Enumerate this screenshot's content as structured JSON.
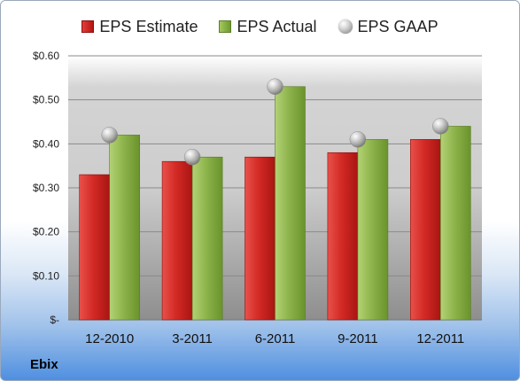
{
  "chart_data": {
    "type": "bar",
    "categories": [
      "12-2010",
      "3-2011",
      "6-2011",
      "9-2011",
      "12-2011"
    ],
    "series": [
      {
        "name": "EPS Estimate",
        "values": [
          0.33,
          0.36,
          0.37,
          0.38,
          0.41
        ],
        "color": "#c42420"
      },
      {
        "name": "EPS Actual",
        "values": [
          0.42,
          0.37,
          0.53,
          0.41,
          0.44
        ],
        "color": "#8cb14a"
      },
      {
        "name": "EPS GAAP",
        "values": [
          0.42,
          0.37,
          0.53,
          0.41,
          0.44
        ],
        "color": "#b0b0b0",
        "marker": "circle"
      }
    ],
    "y_ticks": [
      0,
      0.1,
      0.2,
      0.3,
      0.4,
      0.5,
      0.6
    ],
    "y_tick_labels": [
      "$-",
      "$0.10",
      "$0.20",
      "$0.30",
      "$0.40",
      "$0.50",
      "$0.60"
    ],
    "ylim": [
      0,
      0.6
    ],
    "grid": true,
    "legend_position": "top-center",
    "title": "",
    "xlabel": "",
    "ylabel": ""
  },
  "company": "Ebix"
}
